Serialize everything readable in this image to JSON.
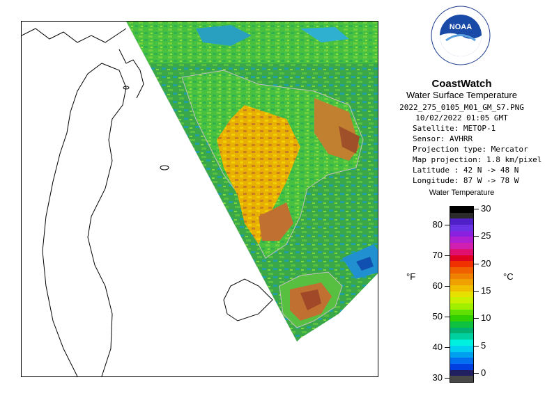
{
  "header": {
    "logo_text": "NOAA",
    "logo_ring_text": "NATIONAL OCEANIC AND ATMOSPHERIC ADMINISTRATION · U.S. DEPARTMENT OF COMMERCE",
    "title": "CoastWatch",
    "subtitle": "Water Surface Temperature",
    "filename": "2022_275_0105_M01_GM_S7.PNG",
    "datetime": "10/02/2022   01:05 GMT"
  },
  "metadata": [
    {
      "label": "Satellite: METOP-1"
    },
    {
      "label": "Sensor: AVHRR"
    },
    {
      "label": "Projection type:  Mercator"
    },
    {
      "label": "Map projection: 1.8 km/pixel"
    },
    {
      "label": "Latitude : 42 N -> 48 N"
    },
    {
      "label": "Longitude: 87 W -> 78 W"
    }
  ],
  "legend": {
    "title": "Water Temperature",
    "unit_left": "°F",
    "unit_right": "°C",
    "fahrenheit_ticks": [
      "80",
      "70",
      "60",
      "50",
      "40",
      "30"
    ],
    "celsius_ticks": [
      "30",
      "25",
      "20",
      "15",
      "10",
      "5",
      "0"
    ],
    "colors": [
      "#000000",
      "#2a2a2a",
      "#5020c8",
      "#6a34e6",
      "#8a20e0",
      "#b020d0",
      "#d020b0",
      "#e01070",
      "#e00020",
      "#f03000",
      "#f06000",
      "#f08000",
      "#f0a000",
      "#f0c000",
      "#e8e000",
      "#c8f000",
      "#a0f000",
      "#60e000",
      "#30d000",
      "#10c040",
      "#00b070",
      "#00d0a0",
      "#00f0e0",
      "#00d0f0",
      "#00a0f0",
      "#0070f0",
      "#0040e0",
      "#202060",
      "#484848"
    ]
  },
  "map": {
    "background": "#ffffff",
    "coast_color": "#000000",
    "lake_fill_colors": [
      "#40c040",
      "#70d040",
      "#f0e000",
      "#e0a000",
      "#c07020",
      "#a05020",
      "#40a8e0",
      "#2060c0"
    ]
  }
}
